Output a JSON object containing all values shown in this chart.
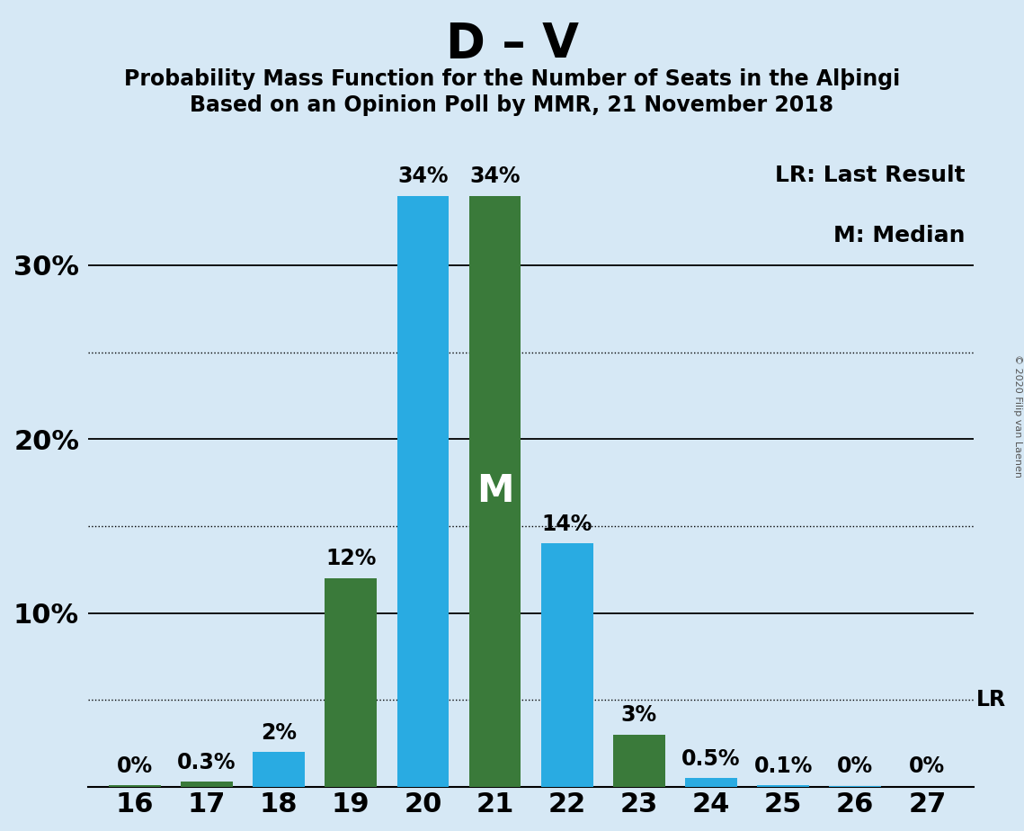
{
  "title": "D – V",
  "subtitle1": "Probability Mass Function for the Number of Seats in the Alþingi",
  "subtitle2": "Based on an Opinion Poll by MMR, 21 November 2018",
  "copyright": "© 2020 Filip van Laenen",
  "seats": [
    16,
    17,
    18,
    19,
    20,
    21,
    22,
    23,
    24,
    25,
    26,
    27
  ],
  "bar_heights": [
    0.001,
    0.003,
    0.02,
    0.12,
    0.34,
    0.34,
    0.14,
    0.03,
    0.005,
    0.001,
    0.0005,
    0.0001
  ],
  "bar_colors": [
    "#3A7A3A",
    "#3A7A3A",
    "#29ABE2",
    "#3A7A3A",
    "#29ABE2",
    "#3A7A3A",
    "#29ABE2",
    "#3A7A3A",
    "#29ABE2",
    "#29ABE2",
    "#29ABE2",
    "#29ABE2"
  ],
  "bar_labels": [
    "0%",
    "0.3%",
    "2%",
    "12%",
    "34%",
    "34%",
    "14%",
    "3%",
    "0.5%",
    "0.1%",
    "0%",
    "0%"
  ],
  "median_idx": 5,
  "median_label": "M",
  "lr_line_value": 0.05,
  "lr_label": "LR",
  "background_color": "#D6E8F5",
  "pmf_color": "#29ABE2",
  "lr_color": "#3A7A3A",
  "title_fontsize": 38,
  "subtitle_fontsize": 17,
  "tick_fontsize": 22,
  "label_fontsize": 17,
  "legend_lr": "LR: Last Result",
  "legend_m": "M: Median",
  "ytick_values": [
    0.0,
    0.1,
    0.2,
    0.3
  ],
  "ytick_labels": [
    "",
    "10%",
    "20%",
    "30%"
  ],
  "solid_lines": [
    0.1,
    0.2,
    0.3
  ],
  "dotted_lines": [
    0.05,
    0.15,
    0.25
  ],
  "ylim": [
    0,
    0.385
  ],
  "bar_width": 0.72
}
